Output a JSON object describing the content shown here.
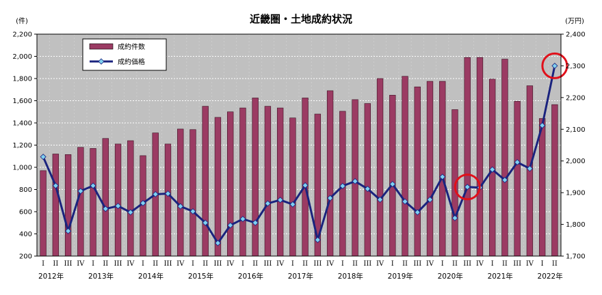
{
  "chart_data": {
    "type": "bar+line",
    "title": "近畿圏・土地成約状況",
    "left_axis": {
      "unit": "(件)",
      "ylim": [
        200,
        2200
      ],
      "step": 200,
      "ticks": [
        "200",
        "400",
        "600",
        "800",
        "1,000",
        "1,200",
        "1,400",
        "1,600",
        "1,800",
        "2,000",
        "2,200"
      ]
    },
    "right_axis": {
      "unit": "(万円)",
      "ylim": [
        1700,
        2400
      ],
      "step": 100,
      "ticks": [
        "1,700",
        "1,800",
        "1,900",
        "2,000",
        "2,100",
        "2,200",
        "2,300",
        "2,400"
      ]
    },
    "quarters": [
      "I",
      "II",
      "III",
      "IV",
      "I",
      "II",
      "III",
      "IV",
      "I",
      "II",
      "III",
      "IV",
      "I",
      "II",
      "III",
      "IV",
      "I",
      "II",
      "III",
      "IV",
      "I",
      "II",
      "III",
      "IV",
      "I",
      "II",
      "III",
      "IV",
      "I",
      "II",
      "III",
      "IV",
      "I",
      "II",
      "III",
      "IV",
      "I",
      "II",
      "III",
      "IV",
      "I",
      "II"
    ],
    "years": [
      {
        "label": "2012年",
        "start": 0
      },
      {
        "label": "2013年",
        "start": 4
      },
      {
        "label": "2014年",
        "start": 8
      },
      {
        "label": "2015年",
        "start": 12
      },
      {
        "label": "2016年",
        "start": 16
      },
      {
        "label": "2017年",
        "start": 20
      },
      {
        "label": "2018年",
        "start": 24
      },
      {
        "label": "2019年",
        "start": 28
      },
      {
        "label": "2020年",
        "start": 32
      },
      {
        "label": "2021年",
        "start": 36
      },
      {
        "label": "2022年",
        "start": 40
      }
    ],
    "series": [
      {
        "name": "成約件数",
        "type": "bar",
        "axis": "left",
        "color": "#9b3b63",
        "values": [
          970,
          1120,
          1115,
          1180,
          1170,
          1260,
          1210,
          1240,
          1105,
          1310,
          1210,
          1345,
          1340,
          1550,
          1450,
          1500,
          1535,
          1625,
          1550,
          1535,
          1445,
          1625,
          1480,
          1690,
          1505,
          1610,
          1575,
          1800,
          1650,
          1820,
          1725,
          1775,
          1775,
          1520,
          1990,
          1990,
          1795,
          1975,
          1595,
          1735,
          1440,
          1565
        ]
      },
      {
        "name": "成約価格",
        "type": "line",
        "axis": "right",
        "color": "#1a237e",
        "marker_color": "#7fd0f0",
        "values": [
          2013,
          1922,
          1779,
          1905,
          1922,
          1849,
          1858,
          1838,
          1867,
          1895,
          1897,
          1857,
          1841,
          1805,
          1741,
          1797,
          1817,
          1805,
          1866,
          1877,
          1863,
          1923,
          1751,
          1883,
          1921,
          1936,
          1912,
          1878,
          1927,
          1872,
          1838,
          1878,
          1950,
          1820,
          1918,
          1916,
          1973,
          1940,
          1996,
          1976,
          2112,
          2300
        ]
      }
    ],
    "highlights": [
      {
        "series": "成約価格",
        "index": 34,
        "color": "#e0101a"
      },
      {
        "series": "成約価格",
        "index": 41,
        "color": "#e0101a"
      }
    ],
    "legend": "top-left",
    "plot_background": "#c0c0c0",
    "grid": true
  }
}
